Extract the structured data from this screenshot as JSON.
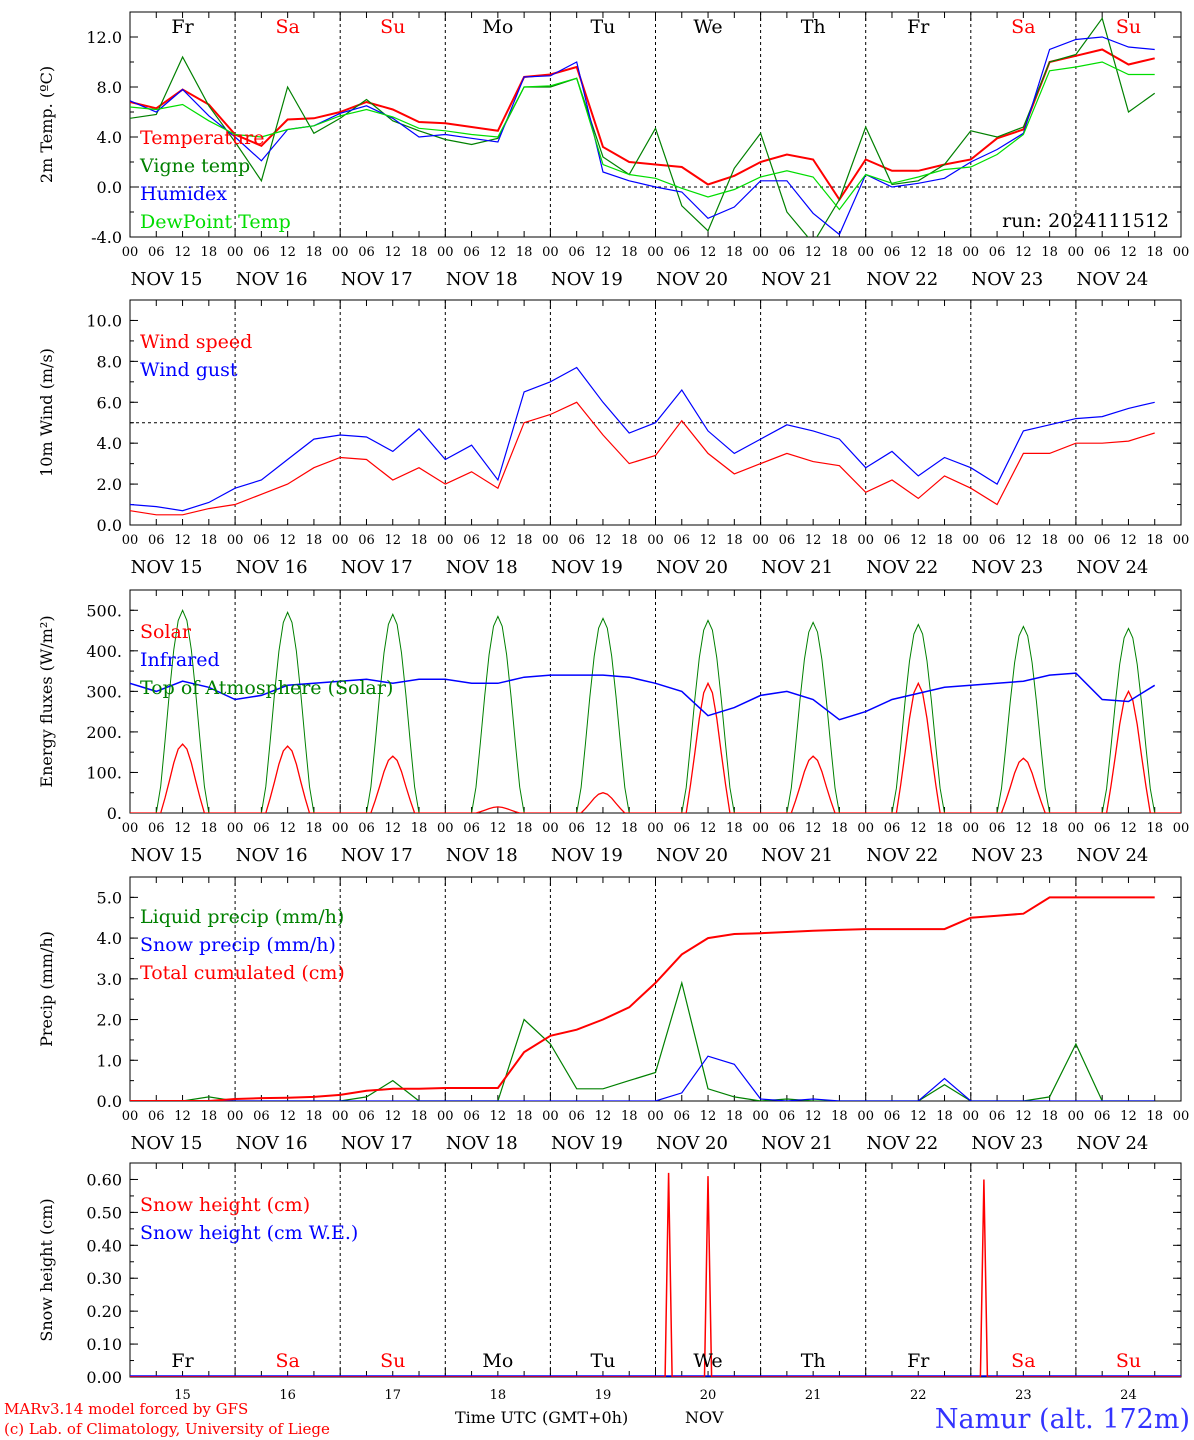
{
  "footer": {
    "credit1": "MARv3.14 model forced by GFS",
    "credit2": "(c) Lab. of Climatology, University of Liege",
    "xlabel": "Time UTC (GMT+0h)",
    "month": "NOV",
    "station": "Namur (alt. 172m)"
  },
  "run_label": "run: 2024111512",
  "weekdays": [
    "Fr",
    "Sa",
    "Su",
    "Mo",
    "Tu",
    "We",
    "Th",
    "Fr",
    "Sa",
    "Su"
  ],
  "weekend_flags": [
    false,
    true,
    true,
    false,
    false,
    false,
    false,
    false,
    true,
    true
  ],
  "dates": [
    "NOV 15",
    "NOV 16",
    "NOV 17",
    "NOV 18",
    "NOV 19",
    "NOV 20",
    "NOV 21",
    "NOV 22",
    "NOV 23",
    "NOV 24"
  ],
  "day_numbers": [
    "15",
    "16",
    "17",
    "18",
    "19",
    "20",
    "21",
    "22",
    "23",
    "24"
  ],
  "hour_ticks": [
    "00",
    "06",
    "12",
    "18"
  ],
  "last_tick": "00",
  "colors": {
    "red": "#ff0000",
    "green": "#008000",
    "blue": "#0000ff",
    "lightgreen": "#00dd00",
    "black": "#000000"
  },
  "chart_data": [
    {
      "type": "line",
      "ylabel": "2m Temp. (ºC)",
      "ylim": [
        -4,
        14
      ],
      "yticks": [
        "-4.0",
        "0.0",
        "4.0",
        "8.0",
        "12.0"
      ],
      "yticks_values": [
        -4,
        0,
        4,
        8,
        12
      ],
      "hline": 0,
      "x_unit": "hours since NOV 15 00 UTC",
      "x": [
        0,
        6,
        12,
        18,
        24,
        30,
        36,
        42,
        48,
        54,
        60,
        66,
        72,
        78,
        84,
        90,
        96,
        102,
        108,
        114,
        120,
        126,
        132,
        138,
        144,
        150,
        156,
        162,
        168,
        174,
        180,
        186,
        192,
        198,
        204,
        210,
        216,
        222,
        228,
        234
      ],
      "series": [
        {
          "name": "Temperature",
          "color": "red",
          "values": [
            6.8,
            6.3,
            7.8,
            6.6,
            4.2,
            3.3,
            5.4,
            5.5,
            6.0,
            6.8,
            6.2,
            5.2,
            5.1,
            4.8,
            4.5,
            8.8,
            9.0,
            9.6,
            3.2,
            2.0,
            1.8,
            1.6,
            0.2,
            0.9,
            2.0,
            2.6,
            2.2,
            -1.0,
            2.2,
            1.3,
            1.3,
            1.8,
            2.2,
            3.9,
            4.6,
            10.0,
            10.5,
            11.0,
            9.8,
            10.3
          ]
        },
        {
          "name": "Vigne temp",
          "color": "green",
          "values": [
            5.5,
            5.8,
            10.4,
            6.5,
            3.6,
            0.5,
            8.0,
            4.3,
            5.5,
            7.0,
            5.3,
            4.5,
            3.8,
            3.4,
            3.9,
            8.0,
            8.0,
            8.7,
            2.4,
            1.0,
            4.7,
            -1.5,
            -3.5,
            1.5,
            4.3,
            -2.0,
            -4.5,
            -1.0,
            4.8,
            0.2,
            0.5,
            1.8,
            4.5,
            4.0,
            4.8,
            10.0,
            10.6,
            13.5,
            6.0,
            7.5
          ]
        },
        {
          "name": "Humidex",
          "color": "blue",
          "values": [
            6.9,
            6.0,
            7.8,
            5.7,
            4.0,
            2.1,
            4.6,
            4.9,
            5.9,
            6.5,
            5.5,
            4.0,
            4.2,
            3.9,
            3.6,
            8.8,
            8.9,
            10.0,
            1.2,
            0.5,
            0.0,
            -0.4,
            -2.5,
            -1.6,
            0.5,
            0.5,
            -2.1,
            -3.8,
            1.0,
            0.0,
            0.3,
            0.7,
            2.0,
            3.0,
            4.3,
            11.0,
            11.8,
            12.0,
            11.2,
            11.0
          ]
        },
        {
          "name": "DewPoint Temp",
          "color": "lightgreen",
          "values": [
            6.4,
            6.2,
            6.6,
            5.3,
            4.2,
            4.0,
            4.6,
            4.9,
            5.7,
            6.2,
            5.6,
            4.7,
            4.5,
            4.2,
            4.0,
            8.0,
            8.1,
            8.7,
            1.8,
            1.0,
            0.7,
            -0.1,
            -0.8,
            -0.2,
            0.8,
            1.3,
            0.8,
            -1.8,
            1.0,
            0.3,
            0.8,
            1.4,
            1.6,
            2.6,
            4.2,
            9.3,
            9.6,
            10.0,
            9.0,
            9.0
          ]
        }
      ]
    },
    {
      "type": "line",
      "ylabel": "10m Wind (m/s)",
      "ylim": [
        0,
        11
      ],
      "yticks": [
        "0.0",
        "2.0",
        "4.0",
        "6.0",
        "8.0",
        "10.0"
      ],
      "yticks_values": [
        0,
        2,
        4,
        6,
        8,
        10
      ],
      "hline": 5,
      "x_unit": "hours since NOV 15 00 UTC",
      "x": [
        0,
        6,
        12,
        18,
        24,
        30,
        36,
        42,
        48,
        54,
        60,
        66,
        72,
        78,
        84,
        90,
        96,
        102,
        108,
        114,
        120,
        126,
        132,
        138,
        144,
        150,
        156,
        162,
        168,
        174,
        180,
        186,
        192,
        198,
        204,
        210,
        216,
        222,
        228,
        234
      ],
      "series": [
        {
          "name": "Wind speed",
          "color": "red",
          "values": [
            0.7,
            0.5,
            0.5,
            0.8,
            1.0,
            1.5,
            2.0,
            2.8,
            3.3,
            3.2,
            2.2,
            2.8,
            2.0,
            2.6,
            1.8,
            5.0,
            5.4,
            6.0,
            4.4,
            3.0,
            3.4,
            5.1,
            3.5,
            2.5,
            3.0,
            3.5,
            3.1,
            2.9,
            1.6,
            2.2,
            1.3,
            2.4,
            1.8,
            1.0,
            3.5,
            3.5,
            4.0,
            4.0,
            4.1,
            4.5
          ]
        },
        {
          "name": "Wind gust",
          "color": "blue",
          "values": [
            1.0,
            0.9,
            0.7,
            1.1,
            1.8,
            2.2,
            3.2,
            4.2,
            4.4,
            4.3,
            3.6,
            4.7,
            3.2,
            3.9,
            2.2,
            6.5,
            7.0,
            7.7,
            6.0,
            4.5,
            5.0,
            6.6,
            4.6,
            3.5,
            4.2,
            4.9,
            4.6,
            4.2,
            2.8,
            3.6,
            2.4,
            3.3,
            2.8,
            2.0,
            4.6,
            4.9,
            5.2,
            5.3,
            5.7,
            6.0
          ]
        }
      ]
    },
    {
      "type": "line",
      "ylabel": "Energy fluxes (W/m²)",
      "ylim": [
        0,
        550
      ],
      "yticks": [
        "0.",
        "100.",
        "200.",
        "300.",
        "400.",
        "500."
      ],
      "yticks_values": [
        0,
        100,
        200,
        300,
        400,
        500
      ],
      "x_unit": "hours since NOV 15 00 UTC",
      "toa_peaks": [
        500,
        495,
        490,
        485,
        480,
        475,
        470,
        465,
        460,
        455
      ],
      "solar_peaks": [
        170,
        165,
        140,
        15,
        50,
        320,
        140,
        320,
        135,
        300
      ],
      "infrared": {
        "x": [
          0,
          6,
          12,
          18,
          24,
          30,
          36,
          42,
          48,
          54,
          60,
          66,
          72,
          78,
          84,
          90,
          96,
          102,
          108,
          114,
          120,
          126,
          132,
          138,
          144,
          150,
          156,
          162,
          168,
          174,
          180,
          186,
          192,
          198,
          204,
          210,
          216,
          222,
          228,
          234
        ],
        "values": [
          320,
          300,
          325,
          310,
          280,
          290,
          315,
          320,
          325,
          330,
          320,
          330,
          330,
          320,
          320,
          335,
          340,
          340,
          340,
          335,
          320,
          300,
          240,
          260,
          290,
          300,
          280,
          230,
          250,
          280,
          295,
          310,
          315,
          320,
          325,
          340,
          345,
          280,
          275,
          315
        ]
      },
      "series": [
        {
          "name": "Solar",
          "color": "red"
        },
        {
          "name": "Infrared",
          "color": "blue"
        },
        {
          "name": "Top of Atmosphere (Solar)",
          "color": "green"
        }
      ]
    },
    {
      "type": "line",
      "ylabel": "Precip (mm/h)",
      "ylim": [
        0,
        5.5
      ],
      "yticks": [
        "0.0",
        "1.0",
        "2.0",
        "3.0",
        "4.0",
        "5.0"
      ],
      "yticks_values": [
        0,
        1,
        2,
        3,
        4,
        5
      ],
      "x_unit": "hours since NOV 15 00 UTC",
      "x": [
        0,
        6,
        12,
        18,
        24,
        30,
        36,
        42,
        48,
        54,
        60,
        66,
        72,
        78,
        84,
        90,
        96,
        102,
        108,
        114,
        120,
        126,
        132,
        138,
        144,
        150,
        156,
        162,
        168,
        174,
        180,
        186,
        192,
        198,
        204,
        210,
        216,
        222,
        228,
        234
      ],
      "series": [
        {
          "name": "Liquid precip (mm/h)",
          "color": "green",
          "values": [
            0,
            0,
            0,
            0.1,
            0,
            0,
            0,
            0,
            0,
            0.1,
            0.5,
            0,
            0,
            0,
            0,
            2.0,
            1.4,
            0.3,
            0.3,
            0.5,
            0.7,
            2.9,
            0.3,
            0.1,
            0,
            0.05,
            0,
            0,
            0,
            0,
            0,
            0.4,
            0,
            0,
            0,
            0.1,
            1.4,
            0,
            0,
            0
          ]
        },
        {
          "name": "Snow precip (mm/h)",
          "color": "blue",
          "values": [
            0,
            0,
            0,
            0,
            0,
            0,
            0,
            0,
            0,
            0,
            0,
            0,
            0,
            0,
            0,
            0,
            0,
            0,
            0,
            0,
            0,
            0.2,
            1.1,
            0.9,
            0.05,
            0,
            0.05,
            0,
            0,
            0,
            0,
            0.55,
            0,
            0,
            0,
            0,
            0,
            0,
            0,
            0
          ]
        },
        {
          "name": "Total cumulated (cm)",
          "color": "red",
          "values": [
            0,
            0,
            0,
            0,
            0.05,
            0.07,
            0.08,
            0.1,
            0.15,
            0.25,
            0.3,
            0.3,
            0.32,
            0.32,
            0.32,
            1.2,
            1.6,
            1.75,
            2.0,
            2.3,
            2.9,
            3.6,
            4.0,
            4.1,
            4.12,
            4.15,
            4.18,
            4.2,
            4.22,
            4.22,
            4.22,
            4.22,
            4.5,
            4.55,
            4.6,
            5.0,
            5.0,
            5.0,
            5.0,
            5.0
          ]
        }
      ]
    },
    {
      "type": "line",
      "ylabel": "Snow height (cm)",
      "ylim": [
        0,
        0.65
      ],
      "yticks": [
        "0.00",
        "0.10",
        "0.20",
        "0.30",
        "0.40",
        "0.50",
        "0.60"
      ],
      "yticks_values": [
        0,
        0.1,
        0.2,
        0.3,
        0.4,
        0.5,
        0.6
      ],
      "x_unit": "hours since NOV 15 00 UTC",
      "spikes": [
        {
          "x": 123,
          "y": 0.62
        },
        {
          "x": 132,
          "y": 0.61
        },
        {
          "x": 195,
          "y": 0.6
        }
      ],
      "series": [
        {
          "name": "Snow height (cm)",
          "color": "red"
        },
        {
          "name": "Snow height (cm W.E.)",
          "color": "blue"
        }
      ]
    }
  ]
}
